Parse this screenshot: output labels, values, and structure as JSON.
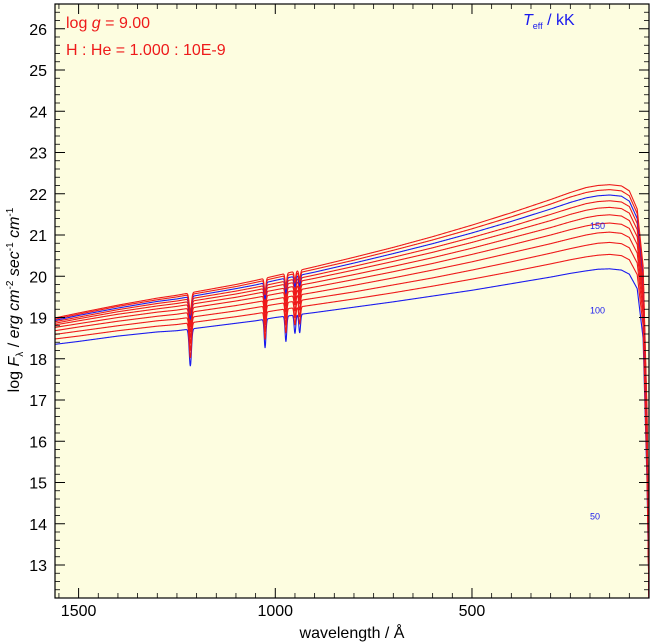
{
  "chart_data": {
    "type": "line",
    "title_lines": [
      {
        "prefix": "log ",
        "symbol": "g",
        "value": " = 9.00"
      },
      {
        "text": "H : He = 1.000 : 10E-9"
      }
    ],
    "legend_title": {
      "symbol": "T",
      "sub": "eff",
      "suffix": " / kK"
    },
    "xlabel": "wavelength / Å",
    "ylabel": {
      "prefix": "log ",
      "symbol": "F",
      "sub": "λ",
      "middle": " / ",
      "units": "erg cm",
      "exp1": "-2",
      "units2": " sec",
      "exp2": "-1",
      "units3": " cm",
      "exp3": "-1"
    },
    "xlim": [
      1560,
      50
    ],
    "ylim": [
      12.2,
      26.6
    ],
    "xticks": [
      1500,
      1000,
      500
    ],
    "xtick_labels": [
      "1500",
      "1000",
      "500"
    ],
    "yticks": [
      13,
      14,
      15,
      16,
      17,
      18,
      19,
      20,
      21,
      22,
      23,
      24,
      25,
      26
    ],
    "ytick_labels": [
      "13",
      "14",
      "15",
      "16",
      "17",
      "18",
      "19",
      "20",
      "21",
      "22",
      "23",
      "24",
      "25",
      "26"
    ],
    "curve_labels": [
      {
        "text": "150",
        "x": 200,
        "y": 21.15
      },
      {
        "text": "100",
        "x": 200,
        "y": 19.1
      },
      {
        "text": "50",
        "x": 200,
        "y": 14.1
      }
    ],
    "absorption_lines": [
      1216,
      1026,
      973,
      950,
      938
    ],
    "series": [
      {
        "teff": 100,
        "color": "#1a1aee",
        "values": [
          [
            1560,
            18.35
          ],
          [
            1500,
            18.42
          ],
          [
            1400,
            18.55
          ],
          [
            1300,
            18.65
          ],
          [
            1250,
            18.68
          ],
          [
            1100,
            18.86
          ],
          [
            1050,
            18.92
          ],
          [
            1000,
            19.0
          ],
          [
            900,
            19.12
          ],
          [
            800,
            19.25
          ],
          [
            700,
            19.38
          ],
          [
            600,
            19.52
          ],
          [
            500,
            19.66
          ],
          [
            400,
            19.82
          ],
          [
            300,
            19.98
          ],
          [
            250,
            20.07
          ],
          [
            210,
            20.13
          ],
          [
            180,
            20.17
          ],
          [
            150,
            20.18
          ],
          [
            120,
            20.15
          ],
          [
            100,
            20.05
          ],
          [
            80,
            19.7
          ],
          [
            65,
            18.5
          ],
          [
            55,
            15.0
          ],
          [
            50,
            12.2
          ]
        ]
      },
      {
        "teff": 105,
        "color": "#ee1a1a",
        "values": [
          [
            1560,
            18.48
          ],
          [
            1500,
            18.55
          ],
          [
            1400,
            18.68
          ],
          [
            1300,
            18.79
          ],
          [
            1250,
            18.83
          ],
          [
            1100,
            19.02
          ],
          [
            1050,
            19.09
          ],
          [
            1000,
            19.17
          ],
          [
            900,
            19.31
          ],
          [
            800,
            19.45
          ],
          [
            700,
            19.6
          ],
          [
            600,
            19.76
          ],
          [
            500,
            19.93
          ],
          [
            400,
            20.11
          ],
          [
            300,
            20.3
          ],
          [
            250,
            20.4
          ],
          [
            210,
            20.47
          ],
          [
            180,
            20.51
          ],
          [
            150,
            20.53
          ],
          [
            120,
            20.5
          ],
          [
            100,
            20.4
          ],
          [
            80,
            20.04
          ],
          [
            65,
            18.8
          ],
          [
            55,
            15.2
          ],
          [
            50,
            12.2
          ]
        ]
      },
      {
        "teff": 110,
        "color": "#ee1a1a",
        "values": [
          [
            1560,
            18.59
          ],
          [
            1500,
            18.67
          ],
          [
            1400,
            18.8
          ],
          [
            1300,
            18.92
          ],
          [
            1250,
            18.96
          ],
          [
            1100,
            19.16
          ],
          [
            1050,
            19.24
          ],
          [
            1000,
            19.32
          ],
          [
            900,
            19.47
          ],
          [
            800,
            19.62
          ],
          [
            700,
            19.79
          ],
          [
            600,
            19.96
          ],
          [
            500,
            20.15
          ],
          [
            400,
            20.35
          ],
          [
            300,
            20.56
          ],
          [
            250,
            20.67
          ],
          [
            210,
            20.75
          ],
          [
            180,
            20.8
          ],
          [
            150,
            20.82
          ],
          [
            120,
            20.79
          ],
          [
            100,
            20.69
          ],
          [
            80,
            20.32
          ],
          [
            65,
            19.05
          ],
          [
            55,
            15.4
          ],
          [
            50,
            12.2
          ]
        ]
      },
      {
        "teff": 115,
        "color": "#ee1a1a",
        "values": [
          [
            1560,
            18.68
          ],
          [
            1500,
            18.77
          ],
          [
            1400,
            18.91
          ],
          [
            1300,
            19.03
          ],
          [
            1250,
            19.08
          ],
          [
            1100,
            19.29
          ],
          [
            1050,
            19.37
          ],
          [
            1000,
            19.45
          ],
          [
            900,
            19.61
          ],
          [
            800,
            19.78
          ],
          [
            700,
            19.96
          ],
          [
            600,
            20.15
          ],
          [
            500,
            20.35
          ],
          [
            400,
            20.57
          ],
          [
            300,
            20.79
          ],
          [
            250,
            20.91
          ],
          [
            210,
            21.0
          ],
          [
            180,
            21.05
          ],
          [
            150,
            21.07
          ],
          [
            120,
            21.04
          ],
          [
            100,
            20.94
          ],
          [
            80,
            20.56
          ],
          [
            65,
            19.27
          ],
          [
            55,
            15.6
          ],
          [
            50,
            12.2
          ]
        ]
      },
      {
        "teff": 120,
        "color": "#ee1a1a",
        "values": [
          [
            1560,
            18.76
          ],
          [
            1500,
            18.85
          ],
          [
            1400,
            19.0
          ],
          [
            1300,
            19.13
          ],
          [
            1250,
            19.18
          ],
          [
            1100,
            19.4
          ],
          [
            1050,
            19.48
          ],
          [
            1000,
            19.57
          ],
          [
            900,
            19.74
          ],
          [
            800,
            19.92
          ],
          [
            700,
            20.11
          ],
          [
            600,
            20.31
          ],
          [
            500,
            20.53
          ],
          [
            400,
            20.76
          ],
          [
            300,
            21.0
          ],
          [
            250,
            21.13
          ],
          [
            210,
            21.22
          ],
          [
            180,
            21.27
          ],
          [
            150,
            21.29
          ],
          [
            120,
            21.26
          ],
          [
            100,
            21.16
          ],
          [
            80,
            20.77
          ],
          [
            65,
            19.47
          ],
          [
            55,
            15.8
          ],
          [
            50,
            12.2
          ]
        ]
      },
      {
        "teff": 125,
        "color": "#ee1a1a",
        "values": [
          [
            1560,
            18.82
          ],
          [
            1500,
            18.92
          ],
          [
            1400,
            19.08
          ],
          [
            1300,
            19.21
          ],
          [
            1250,
            19.27
          ],
          [
            1100,
            19.49
          ],
          [
            1050,
            19.58
          ],
          [
            1000,
            19.67
          ],
          [
            900,
            19.85
          ],
          [
            800,
            20.04
          ],
          [
            700,
            20.24
          ],
          [
            600,
            20.45
          ],
          [
            500,
            20.68
          ],
          [
            400,
            20.93
          ],
          [
            300,
            21.18
          ],
          [
            250,
            21.32
          ],
          [
            210,
            21.42
          ],
          [
            180,
            21.47
          ],
          [
            150,
            21.49
          ],
          [
            120,
            21.46
          ],
          [
            100,
            21.35
          ],
          [
            80,
            20.96
          ],
          [
            65,
            19.65
          ],
          [
            55,
            16.0
          ],
          [
            50,
            12.2
          ]
        ]
      },
      {
        "teff": 130,
        "color": "#ee1a1a",
        "values": [
          [
            1560,
            18.86
          ],
          [
            1500,
            18.97
          ],
          [
            1400,
            19.14
          ],
          [
            1300,
            19.28
          ],
          [
            1250,
            19.34
          ],
          [
            1100,
            19.57
          ],
          [
            1050,
            19.66
          ],
          [
            1000,
            19.76
          ],
          [
            900,
            19.95
          ],
          [
            800,
            20.15
          ],
          [
            700,
            20.36
          ],
          [
            600,
            20.58
          ],
          [
            500,
            20.82
          ],
          [
            400,
            21.08
          ],
          [
            300,
            21.35
          ],
          [
            250,
            21.5
          ],
          [
            210,
            21.6
          ],
          [
            180,
            21.65
          ],
          [
            150,
            21.67
          ],
          [
            120,
            21.64
          ],
          [
            100,
            21.53
          ],
          [
            80,
            21.13
          ],
          [
            65,
            19.8
          ],
          [
            55,
            16.2
          ],
          [
            50,
            12.2
          ]
        ]
      },
      {
        "teff": 135,
        "color": "#ee1a1a",
        "values": [
          [
            1560,
            18.9
          ],
          [
            1500,
            19.01
          ],
          [
            1400,
            19.19
          ],
          [
            1300,
            19.34
          ],
          [
            1250,
            19.4
          ],
          [
            1100,
            19.64
          ],
          [
            1050,
            19.73
          ],
          [
            1000,
            19.83
          ],
          [
            900,
            20.03
          ],
          [
            800,
            20.24
          ],
          [
            700,
            20.46
          ],
          [
            600,
            20.69
          ],
          [
            500,
            20.94
          ],
          [
            400,
            21.21
          ],
          [
            300,
            21.5
          ],
          [
            250,
            21.65
          ],
          [
            210,
            21.76
          ],
          [
            180,
            21.81
          ],
          [
            150,
            21.83
          ],
          [
            120,
            21.8
          ],
          [
            100,
            21.69
          ],
          [
            80,
            21.28
          ],
          [
            65,
            19.95
          ],
          [
            55,
            16.4
          ],
          [
            50,
            12.2
          ]
        ]
      },
      {
        "teff": 140,
        "color": "#1a1aee",
        "values": [
          [
            1560,
            18.93
          ],
          [
            1500,
            19.05
          ],
          [
            1400,
            19.23
          ],
          [
            1300,
            19.39
          ],
          [
            1250,
            19.45
          ],
          [
            1100,
            19.7
          ],
          [
            1050,
            19.79
          ],
          [
            1000,
            19.9
          ],
          [
            900,
            20.1
          ],
          [
            800,
            20.32
          ],
          [
            700,
            20.55
          ],
          [
            600,
            20.79
          ],
          [
            500,
            21.05
          ],
          [
            400,
            21.33
          ],
          [
            300,
            21.63
          ],
          [
            250,
            21.79
          ],
          [
            210,
            21.9
          ],
          [
            180,
            21.95
          ],
          [
            150,
            21.97
          ],
          [
            120,
            21.94
          ],
          [
            100,
            21.82
          ],
          [
            80,
            21.4
          ],
          [
            65,
            20.05
          ],
          [
            55,
            16.5
          ],
          [
            50,
            12.2
          ]
        ]
      },
      {
        "teff": 145,
        "color": "#ee1a1a",
        "values": [
          [
            1560,
            18.96
          ],
          [
            1500,
            19.08
          ],
          [
            1400,
            19.27
          ],
          [
            1300,
            19.43
          ],
          [
            1250,
            19.5
          ],
          [
            1100,
            19.75
          ],
          [
            1050,
            19.85
          ],
          [
            1000,
            19.96
          ],
          [
            900,
            20.17
          ],
          [
            800,
            20.39
          ],
          [
            700,
            20.63
          ],
          [
            600,
            20.88
          ],
          [
            500,
            21.15
          ],
          [
            400,
            21.44
          ],
          [
            300,
            21.75
          ],
          [
            250,
            21.92
          ],
          [
            210,
            22.03
          ],
          [
            180,
            22.08
          ],
          [
            150,
            22.1
          ],
          [
            120,
            22.07
          ],
          [
            100,
            21.95
          ],
          [
            80,
            21.52
          ],
          [
            65,
            20.15
          ],
          [
            55,
            16.6
          ],
          [
            50,
            12.2
          ]
        ]
      },
      {
        "teff": 150,
        "color": "#ee1a1a",
        "values": [
          [
            1560,
            18.99
          ],
          [
            1500,
            19.11
          ],
          [
            1400,
            19.3
          ],
          [
            1300,
            19.47
          ],
          [
            1250,
            19.54
          ],
          [
            1100,
            19.8
          ],
          [
            1050,
            19.9
          ],
          [
            1000,
            20.01
          ],
          [
            900,
            20.23
          ],
          [
            800,
            20.46
          ],
          [
            700,
            20.7
          ],
          [
            600,
            20.96
          ],
          [
            500,
            21.24
          ],
          [
            400,
            21.54
          ],
          [
            300,
            21.86
          ],
          [
            250,
            22.03
          ],
          [
            210,
            22.15
          ],
          [
            180,
            22.2
          ],
          [
            150,
            22.22
          ],
          [
            120,
            22.19
          ],
          [
            100,
            22.07
          ],
          [
            80,
            21.63
          ],
          [
            65,
            20.25
          ],
          [
            55,
            16.7
          ],
          [
            50,
            12.2
          ]
        ]
      }
    ]
  }
}
